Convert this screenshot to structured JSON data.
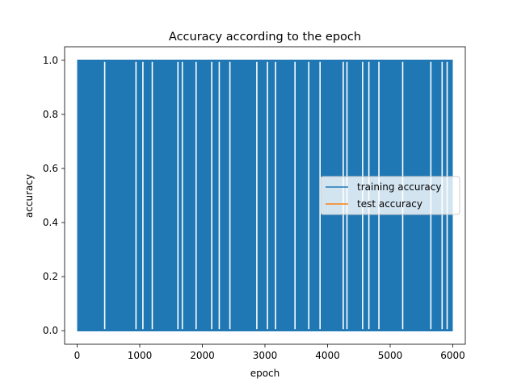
{
  "chart_data": {
    "type": "line",
    "title": "Accuracy according to the epoch",
    "xlabel": "epoch",
    "ylabel": "accuracy",
    "xlim": [
      -200,
      6200
    ],
    "ylim": [
      -0.05,
      1.05
    ],
    "xticks": [
      0,
      1000,
      2000,
      3000,
      4000,
      5000,
      6000
    ],
    "yticks": [
      0.0,
      0.2,
      0.4,
      0.6,
      0.8,
      1.0
    ],
    "xtick_labels": [
      "0",
      "1000",
      "2000",
      "3000",
      "4000",
      "5000",
      "6000"
    ],
    "ytick_labels": [
      "0.0",
      "0.2",
      "0.4",
      "0.6",
      "0.8",
      "1.0"
    ],
    "grid": false,
    "legend_position": "center-right",
    "series": [
      {
        "name": "training accuracy",
        "color": "#1f77b4",
        "x_range": [
          0,
          6000
        ],
        "value_levels": [
          0.0,
          1.0
        ],
        "description_values": "oscillates between 0.0 and 1.0 every epoch",
        "values_at_1.0_only_epochs": [
          440,
          940,
          1050,
          1200,
          1610,
          1680,
          1900,
          2150,
          2270,
          2440,
          2870,
          3040,
          3170,
          3480,
          3700,
          3880,
          4250,
          4310,
          4560,
          4660,
          4820,
          5200,
          5650,
          5830,
          5910
        ]
      },
      {
        "name": "test accuracy",
        "color": "#ff7f0e",
        "x_range": [
          0,
          6000
        ],
        "value_levels": [],
        "description_values": "not visible"
      }
    ]
  }
}
